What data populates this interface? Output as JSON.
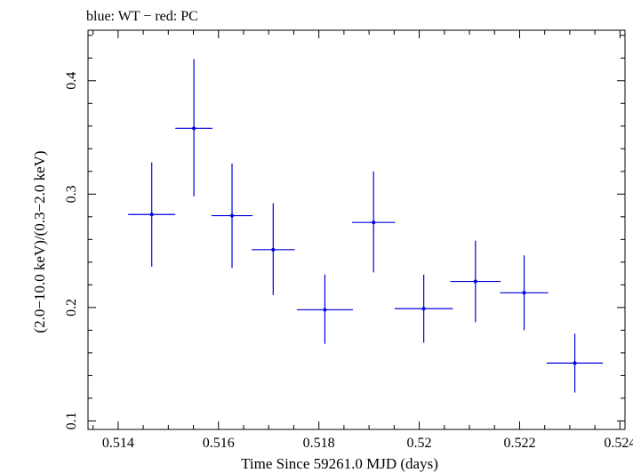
{
  "chart_data": {
    "type": "scatter",
    "title": "blue: WT − red: PC",
    "xlabel": "Time Since 59261.0 MJD (days)",
    "ylabel": "(2.0−10.0 keV)/(0.3−2.0 keV)",
    "xlim": [
      0.5134,
      0.5241
    ],
    "ylim": [
      0.0925,
      0.4445
    ],
    "xticks": [
      {
        "value": 0.514,
        "label": "0.514"
      },
      {
        "value": 0.516,
        "label": "0.516"
      },
      {
        "value": 0.518,
        "label": "0.518"
      },
      {
        "value": 0.52,
        "label": "0.52"
      },
      {
        "value": 0.522,
        "label": "0.522"
      },
      {
        "value": 0.524,
        "label": "0.524"
      }
    ],
    "yticks": [
      {
        "value": 0.1,
        "label": "0.1"
      },
      {
        "value": 0.2,
        "label": "0.2"
      },
      {
        "value": 0.3,
        "label": "0.3"
      },
      {
        "value": 0.4,
        "label": "0.4"
      }
    ],
    "grid": false,
    "series": [
      {
        "name": "WT",
        "color": "#0000dd",
        "points": [
          {
            "x": 0.51467,
            "xerr": 0.00047,
            "y": 0.282,
            "ylo": 0.236,
            "yhi": 0.328
          },
          {
            "x": 0.51551,
            "xerr": 0.00037,
            "y": 0.358,
            "ylo": 0.298,
            "yhi": 0.419
          },
          {
            "x": 0.51627,
            "xerr": 0.00041,
            "y": 0.281,
            "ylo": 0.235,
            "yhi": 0.327
          },
          {
            "x": 0.51709,
            "xerr": 0.00043,
            "y": 0.251,
            "ylo": 0.211,
            "yhi": 0.292
          },
          {
            "x": 0.51812,
            "xerr": 0.00056,
            "y": 0.198,
            "ylo": 0.168,
            "yhi": 0.229
          },
          {
            "x": 0.51909,
            "xerr": 0.00043,
            "y": 0.275,
            "ylo": 0.231,
            "yhi": 0.32
          },
          {
            "x": 0.52009,
            "xerr": 0.00058,
            "y": 0.199,
            "ylo": 0.169,
            "yhi": 0.229
          },
          {
            "x": 0.52112,
            "xerr": 0.0005,
            "y": 0.223,
            "ylo": 0.187,
            "yhi": 0.259
          },
          {
            "x": 0.52209,
            "xerr": 0.00048,
            "y": 0.213,
            "ylo": 0.18,
            "yhi": 0.246
          },
          {
            "x": 0.5231,
            "xerr": 0.00056,
            "y": 0.151,
            "ylo": 0.125,
            "yhi": 0.177
          }
        ]
      }
    ]
  }
}
